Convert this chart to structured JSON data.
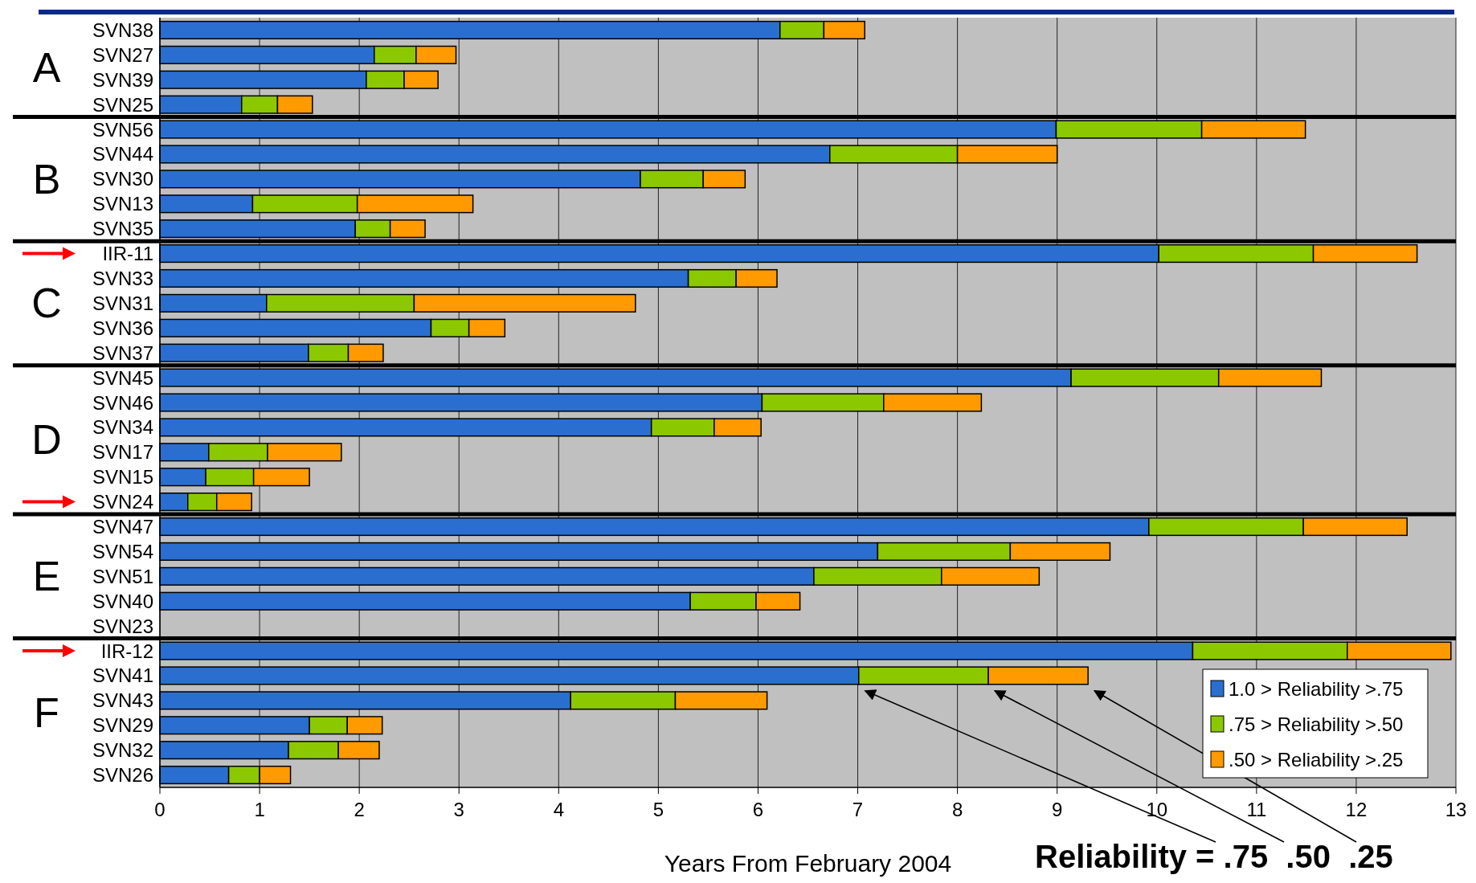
{
  "chart_data": {
    "type": "bar",
    "orientation": "horizontal",
    "stacked": true,
    "xlabel": "Years From February 2004",
    "categories": [
      "SVN38",
      "SVN27",
      "SVN39",
      "SVN25",
      "SVN56",
      "SVN44",
      "SVN30",
      "SVN13",
      "SVN35",
      "IIR-11",
      "SVN33",
      "SVN31",
      "SVN36",
      "SVN37",
      "SVN45",
      "SVN46",
      "SVN34",
      "SVN17",
      "SVN15",
      "SVN24",
      "SVN47",
      "SVN54",
      "SVN51",
      "SVN40",
      "SVN23",
      "IIR-12",
      "SVN41",
      "SVN43",
      "SVN29",
      "SVN32",
      "SVN26"
    ],
    "series": [
      {
        "name": "1.0 > Reliability >.75",
        "color": "#2a6fd0",
        "values": [
          6.22,
          2.15,
          2.07,
          0.82,
          8.99,
          6.72,
          4.82,
          0.93,
          1.96,
          10.02,
          5.3,
          1.07,
          2.72,
          1.49,
          9.14,
          6.04,
          4.93,
          0.49,
          0.46,
          0.28,
          9.92,
          7.2,
          6.56,
          5.32,
          null,
          10.36,
          7.01,
          4.12,
          1.5,
          1.29,
          0.69
        ]
      },
      {
        "name": ".75 > Reliability >.50",
        "color": "#8cc800",
        "values": [
          0.44,
          0.42,
          0.38,
          0.36,
          1.46,
          1.28,
          0.63,
          1.05,
          0.35,
          1.55,
          0.48,
          1.48,
          0.38,
          0.4,
          1.48,
          1.22,
          0.63,
          0.59,
          0.48,
          0.29,
          1.55,
          1.33,
          1.28,
          0.66,
          null,
          1.55,
          1.3,
          1.05,
          0.38,
          0.5,
          0.31
        ]
      },
      {
        "name": ".50 > Reliability >.25",
        "color": "#ff9a00",
        "values": [
          0.41,
          0.4,
          0.34,
          0.35,
          1.04,
          1.0,
          0.42,
          1.16,
          0.35,
          1.04,
          0.41,
          2.22,
          0.36,
          0.35,
          1.03,
          0.98,
          0.47,
          0.74,
          0.56,
          0.35,
          1.04,
          1.0,
          0.98,
          0.44,
          null,
          1.04,
          1.0,
          0.92,
          0.35,
          0.41,
          0.31
        ]
      }
    ],
    "xlim": [
      0,
      13
    ],
    "xticks": [
      0,
      1,
      2,
      3,
      4,
      5,
      6,
      7,
      8,
      9,
      10,
      11,
      12,
      13
    ],
    "grid": "x",
    "legend": "bottom right",
    "annotations": [
      "A",
      "B",
      "C",
      "D",
      "E",
      "F",
      "Reliability = .75  .50  .25"
    ]
  }
}
